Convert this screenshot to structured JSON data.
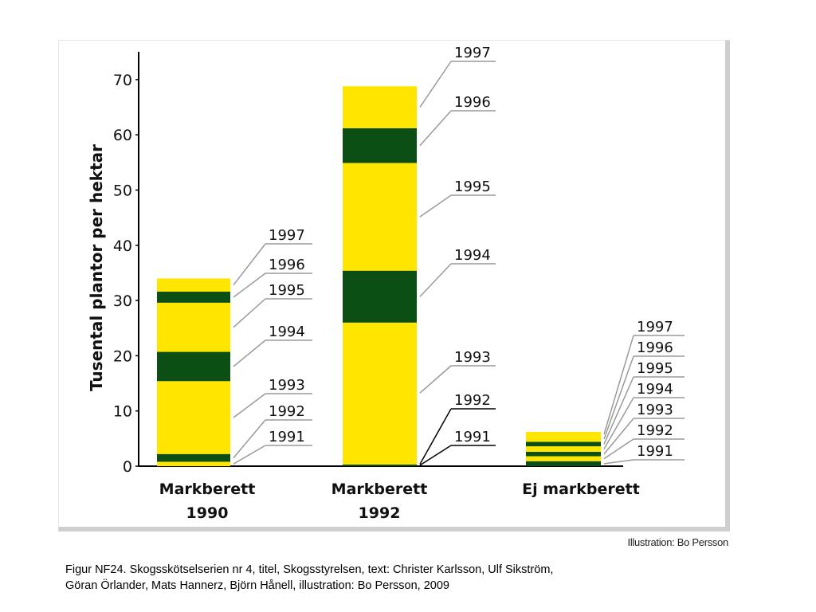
{
  "chart_data": {
    "type": "bar",
    "stacked": true,
    "ylabel": "Tusental plantor per hektar",
    "ylim": [
      0,
      75
    ],
    "yticks": [
      0,
      10,
      20,
      30,
      40,
      50,
      60,
      70
    ],
    "categories": [
      "Markberett 1990",
      "Markberett 1992",
      "Ej markberett"
    ],
    "category_labels": [
      [
        "Markberett",
        "1990"
      ],
      [
        "Markberett",
        "1992"
      ],
      [
        "Ej markberett"
      ]
    ],
    "colors": {
      "yellow": "#ffe600",
      "green": "#0b4f14"
    },
    "bars": [
      {
        "segments": [
          {
            "label": "1991",
            "value": 0.8,
            "color": "yellow"
          },
          {
            "label": "1992",
            "value": 1.4,
            "color": "green"
          },
          {
            "label": "1993",
            "value": 13.2,
            "color": "yellow"
          },
          {
            "label": "1994",
            "value": 5.3,
            "color": "green"
          },
          {
            "label": "1995",
            "value": 8.9,
            "color": "yellow"
          },
          {
            "label": "1996",
            "value": 2.0,
            "color": "green"
          },
          {
            "label": "1997",
            "value": 2.4,
            "color": "yellow"
          }
        ]
      },
      {
        "segments": [
          {
            "label": "1991",
            "value": 0.3,
            "color": "green"
          },
          {
            "label": "1992",
            "value": 0.2,
            "color": "yellow"
          },
          {
            "label": "1993",
            "value": 25.5,
            "color": "yellow"
          },
          {
            "label": "1994",
            "value": 9.4,
            "color": "green"
          },
          {
            "label": "1995",
            "value": 19.5,
            "color": "yellow"
          },
          {
            "label": "1996",
            "value": 6.3,
            "color": "green"
          },
          {
            "label": "1997",
            "value": 7.6,
            "color": "yellow"
          }
        ]
      },
      {
        "segments": [
          {
            "label": "1991",
            "value": 0.9,
            "color": "green"
          },
          {
            "label": "1992",
            "value": 0.9,
            "color": "yellow"
          },
          {
            "label": "1993",
            "value": 0.8,
            "color": "green"
          },
          {
            "label": "1994",
            "value": 1.0,
            "color": "yellow"
          },
          {
            "label": "1995",
            "value": 0.8,
            "color": "green"
          },
          {
            "label": "1996",
            "value": 1.0,
            "color": "yellow"
          },
          {
            "label": "1997",
            "value": 0.8,
            "color": "yellow"
          }
        ]
      }
    ]
  },
  "credit": "Illustration: Bo Persson",
  "caption": {
    "line1": "Figur  NF24. Skogsskötselserien nr 4, titel, Skogsstyrelsen, text: Christer Karlsson, Ulf Sikström,",
    "line2": "Göran Örlander, Mats Hannerz, Björn Hånell, illustration: Bo Persson, 2009"
  }
}
